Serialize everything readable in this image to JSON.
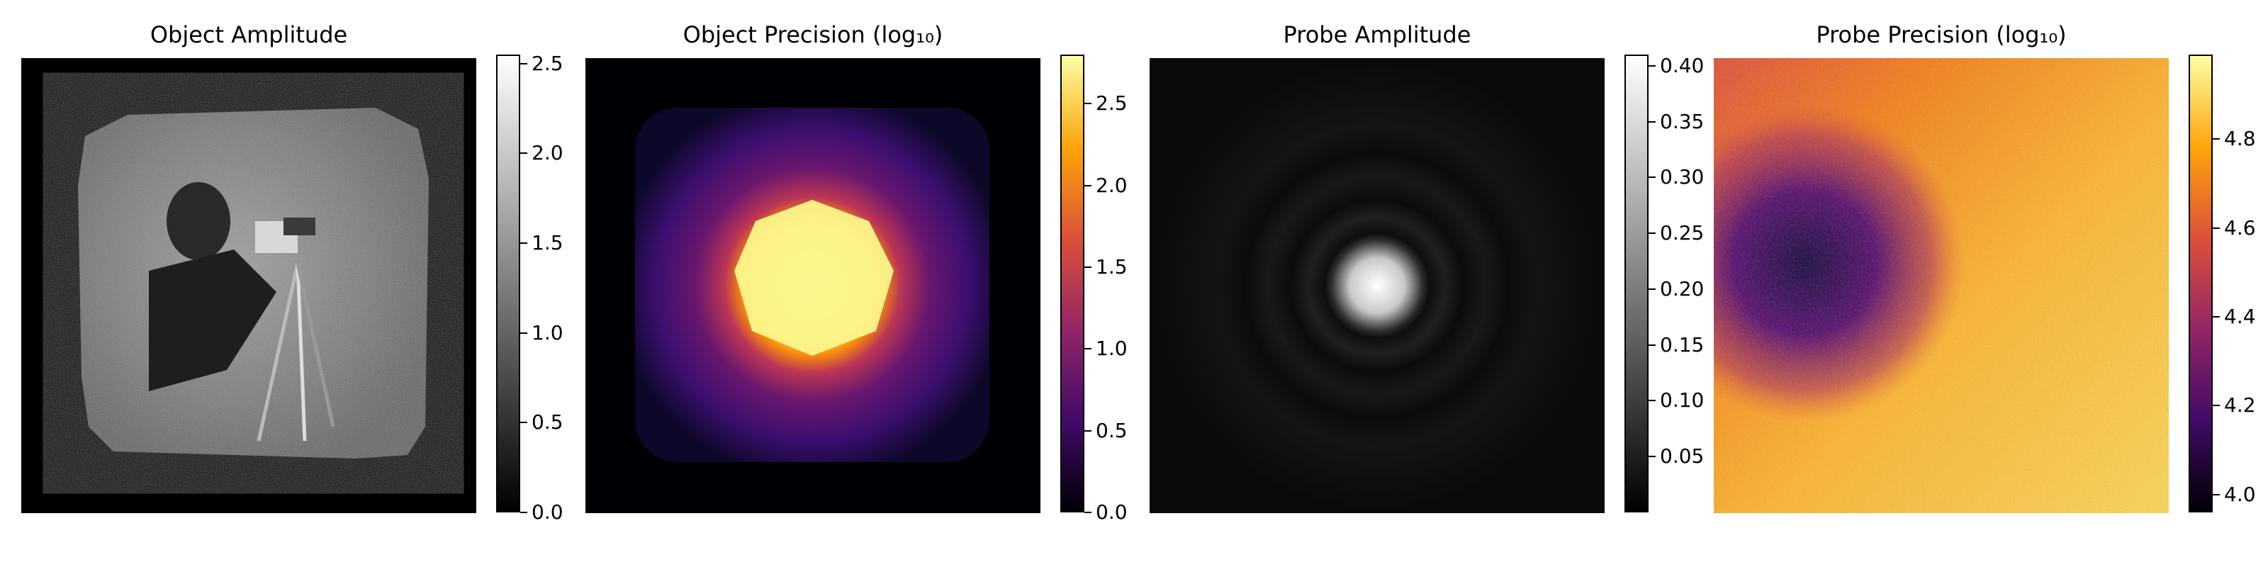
{
  "chart_data": [
    {
      "type": "heatmap",
      "title": "Object Amplitude",
      "colormap": "gray",
      "image_content": "cameraman photograph with speckle noise, scanned square-ish region on black background",
      "colorbar": {
        "min": 0.0,
        "max": 2.55,
        "ticks": [
          0.0,
          0.5,
          1.0,
          1.5,
          2.0,
          2.5
        ],
        "tick_labels": [
          "0.0",
          "0.5",
          "1.0",
          "1.5",
          "2.0",
          "2.5"
        ]
      }
    },
    {
      "type": "heatmap",
      "title": "Object Precision (log₁₀)",
      "colormap": "inferno",
      "image_content": "bright yellow heptagon-like central blob fading to purple square border, black outside",
      "colorbar": {
        "min": 0.0,
        "max": 2.8,
        "ticks": [
          0.0,
          0.5,
          1.0,
          1.5,
          2.0,
          2.5
        ],
        "tick_labels": [
          "0.0",
          "0.5",
          "1.0",
          "1.5",
          "2.0",
          "2.5"
        ]
      }
    },
    {
      "type": "heatmap",
      "title": "Probe Amplitude",
      "colormap": "gray",
      "image_content": "bright central Airy disk with faint concentric rings on dark background",
      "colorbar": {
        "min": 0.0,
        "max": 0.41,
        "ticks": [
          0.05,
          0.1,
          0.15,
          0.2,
          0.25,
          0.3,
          0.35,
          0.4
        ],
        "tick_labels": [
          "0.05",
          "0.10",
          "0.15",
          "0.20",
          "0.25",
          "0.30",
          "0.35",
          "0.40"
        ]
      }
    },
    {
      "type": "heatmap",
      "title": "Probe Precision (log₁₀)",
      "colormap": "inferno",
      "image_content": "noisy orange-yellow field with dark purple band in the upper-left region",
      "colorbar": {
        "min": 3.96,
        "max": 4.99,
        "ticks": [
          4.0,
          4.2,
          4.4,
          4.6,
          4.8
        ],
        "tick_labels": [
          "4.0",
          "4.2",
          "4.4",
          "4.6",
          "4.8"
        ]
      }
    }
  ]
}
